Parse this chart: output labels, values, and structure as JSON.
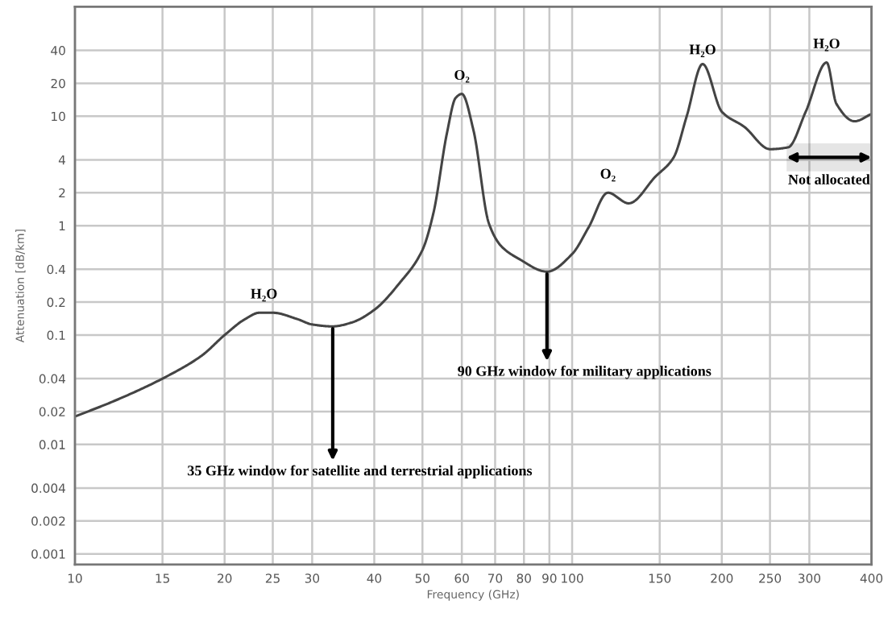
{
  "chart_data": {
    "type": "line",
    "xlabel": "Frequency (GHz)",
    "ylabel": "Attenuation [dB/km]",
    "log": "xy",
    "grid": true,
    "marker": "none",
    "line_style": "solid",
    "xlim": [
      10,
      400
    ],
    "xticks": [
      10,
      15,
      20,
      25,
      30,
      40,
      50,
      60,
      70,
      80,
      90,
      100,
      150,
      200,
      250,
      300,
      400
    ],
    "ylim": [
      0.0008,
      100
    ],
    "yticks": [
      0.001,
      0.002,
      0.004,
      0.01,
      0.02,
      0.04,
      0.1,
      0.2,
      0.4,
      1,
      2,
      4,
      10,
      20,
      40
    ],
    "series": [
      {
        "color": "#444444",
        "x": [
          10,
          12,
          15,
          18,
          20,
          22,
          23.5,
          25,
          28,
          30,
          33,
          36,
          40,
          45,
          50,
          52.6,
          56,
          58.3,
          60,
          63.3,
          68,
          72,
          78,
          89,
          100,
          108,
          118,
          130,
          147,
          160,
          170,
          183,
          200,
          222,
          250,
          272,
          295,
          325,
          340,
          370,
          400
        ],
        "values": [
          0.018,
          0.025,
          0.04,
          0.065,
          0.1,
          0.14,
          0.16,
          0.16,
          0.14,
          0.125,
          0.12,
          0.13,
          0.17,
          0.3,
          0.6,
          1.3,
          7,
          14.7,
          16,
          7.5,
          1.05,
          0.65,
          0.5,
          0.38,
          0.55,
          0.97,
          2,
          1.6,
          2.8,
          4.2,
          10,
          30,
          11,
          8,
          5,
          5.2,
          11,
          31,
          13,
          9,
          10.5
        ]
      }
    ],
    "annotations": [
      {
        "text": "H₂O",
        "x": 24,
        "y": 0.16
      },
      {
        "text": "O₂",
        "x": 60,
        "y": 16
      },
      {
        "text": "O₂",
        "x": 118,
        "y": 2
      },
      {
        "text": "H₂O",
        "x": 183,
        "y": 30
      },
      {
        "text": "H₂O",
        "x": 325,
        "y": 31
      },
      {
        "text": "35 GHz window for satellite and terrestrial applications",
        "x": 33,
        "y": 0.12
      },
      {
        "text": "90 GHz window for military applications",
        "x": 89,
        "y": 0.38
      }
    ],
    "bands": [
      {
        "axis": "x",
        "from": 270,
        "to": 400,
        "label": "Not allocated",
        "color": "#000000"
      }
    ]
  }
}
